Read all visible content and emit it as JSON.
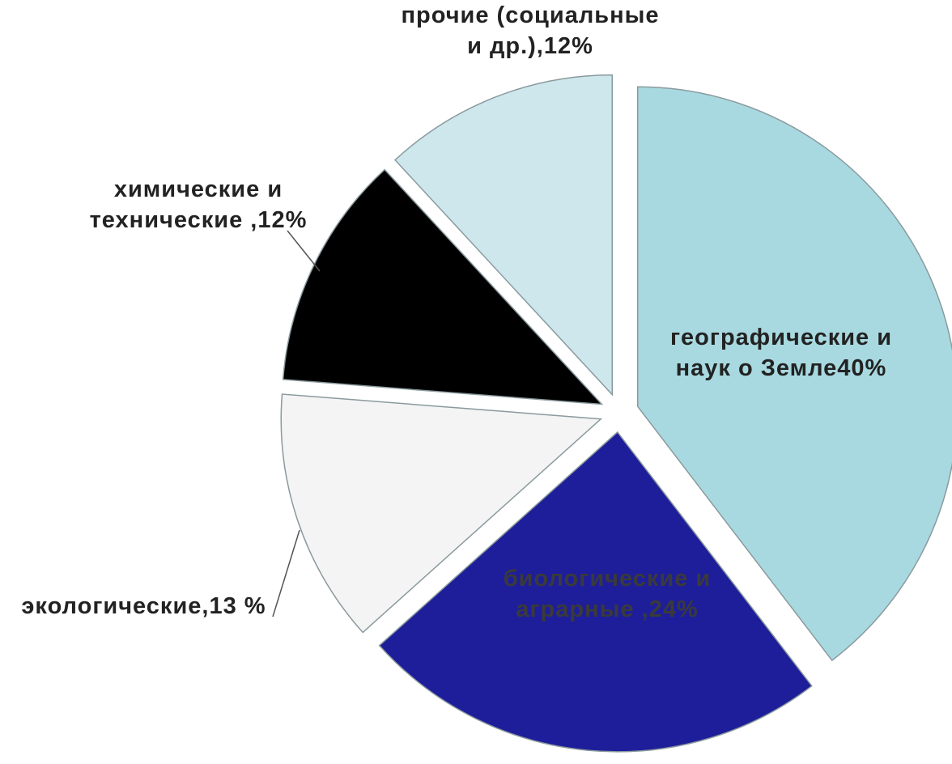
{
  "chart_data": {
    "type": "pie",
    "categories": [
      "географические и наук о Земле40%",
      "биологические и аграрные ,24%",
      "экологические,13 %",
      "химические и технические ,12%",
      "прочие (социальные и др.),12%"
    ],
    "values": [
      40,
      24,
      13,
      12,
      12
    ],
    "colors": [
      "#a8d9e0",
      "#1e1e9a",
      "#f4f4f4",
      "#000000",
      "#cde7ec"
    ]
  }
}
